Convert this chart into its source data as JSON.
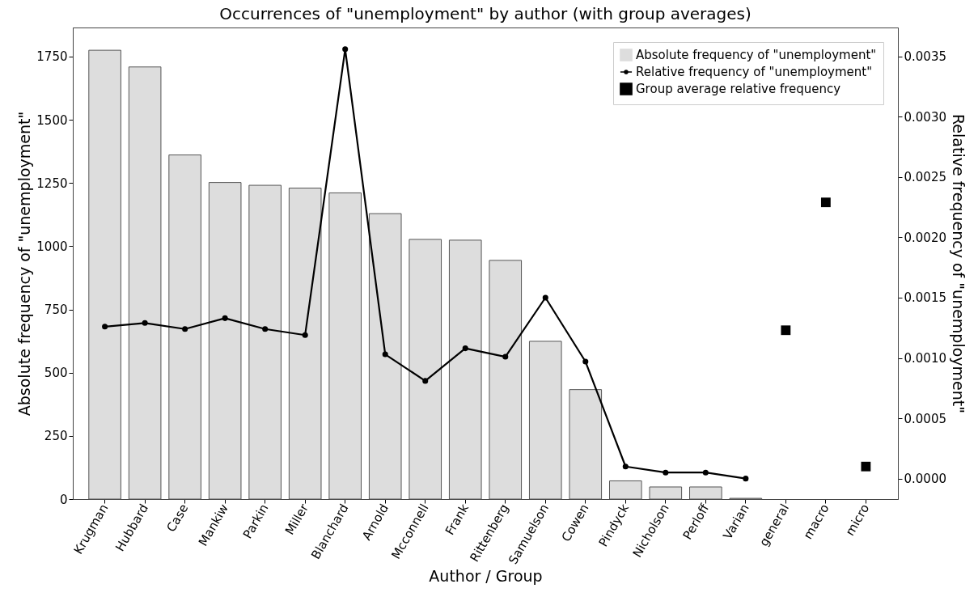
{
  "chart_data": {
    "type": "bar",
    "title": "Occurrences of \"unemployment\" by author (with group averages)",
    "xlabel": "Author / Group",
    "ylabel": "Absolute frequency of \"unemployment\"",
    "y2label": "Relative frequency of \"unemployment\"",
    "categories": [
      "Krugman",
      "Hubbard",
      "Case",
      "Mankiw",
      "Parkin",
      "Miller",
      "Blanchard",
      "Arnold",
      "Mcconnell",
      "Frank",
      "Rittenberg",
      "Samuelson",
      "Cowen",
      "Pindyck",
      "Nicholson",
      "Perloff",
      "Varian",
      "general",
      "macro",
      "micro"
    ],
    "series": [
      {
        "name": "Absolute frequency of \"unemployment\"",
        "color": "#dddddd",
        "values": [
          1775,
          1709,
          1361,
          1252,
          1241,
          1230,
          1211,
          1129,
          1027,
          1024,
          944,
          624,
          433,
          72,
          48,
          48,
          3,
          null,
          null,
          null
        ]
      },
      {
        "name": "Relative frequency of \"unemployment\"",
        "type": "line",
        "axis": "y2",
        "color": "#000000",
        "marker": "circle",
        "values": [
          0.00126,
          0.00129,
          0.00124,
          0.00133,
          0.00124,
          0.00119,
          0.00356,
          0.00103,
          0.00081,
          0.00108,
          0.00101,
          0.0015,
          0.00097,
          0.0001,
          5e-05,
          5e-05,
          0,
          null,
          null,
          null
        ]
      },
      {
        "name": "Group average relative frequency",
        "type": "scatter",
        "axis": "y2",
        "color": "#000000",
        "marker": "square",
        "x": [
          "general",
          "macro",
          "micro"
        ],
        "values": [
          0.00123,
          0.00229,
          0.0001
        ]
      }
    ],
    "ylim": [
      0,
      1865
    ],
    "yticks": [
      0,
      250,
      500,
      750,
      1000,
      1250,
      1500,
      1750
    ],
    "y2lim": [
      -0.00017,
      0.00374
    ],
    "y2ticks": [
      {
        "value": 0,
        "label": "0.0000"
      },
      {
        "value": 0.0005,
        "label": "0.0005"
      },
      {
        "value": 0.001,
        "label": "0.0010"
      },
      {
        "value": 0.0015,
        "label": "0.0015"
      },
      {
        "value": 0.002,
        "label": "0.0020"
      },
      {
        "value": 0.0025,
        "label": "0.0025"
      },
      {
        "value": 0.003,
        "label": "0.0030"
      },
      {
        "value": 0.0035,
        "label": "0.0035"
      }
    ],
    "legend": "top right"
  }
}
